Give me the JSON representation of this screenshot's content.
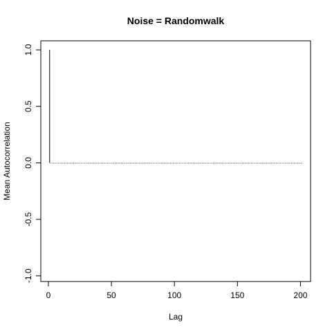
{
  "chart_data": {
    "type": "bar",
    "title": "Noise = Randomwalk",
    "xlabel": "Lag",
    "ylabel": "Mean Autocorrelation",
    "xlim": [
      -6,
      208
    ],
    "ylim": [
      -1.05,
      1.08
    ],
    "x_ticks": [
      0,
      50,
      100,
      150,
      200
    ],
    "y_ticks": [
      -1.0,
      -0.5,
      0.0,
      0.5,
      1.0
    ],
    "x_tick_labels": [
      "0",
      "50",
      "100",
      "150",
      "200"
    ],
    "y_tick_labels": [
      "-1.0",
      "-0.5",
      "0.0",
      "0.5",
      "1.0"
    ],
    "lags": {
      "start": 1,
      "end": 201
    },
    "lag1_value": 1.0,
    "other_lags_value": 0.0,
    "grid": false,
    "legend": "none"
  }
}
